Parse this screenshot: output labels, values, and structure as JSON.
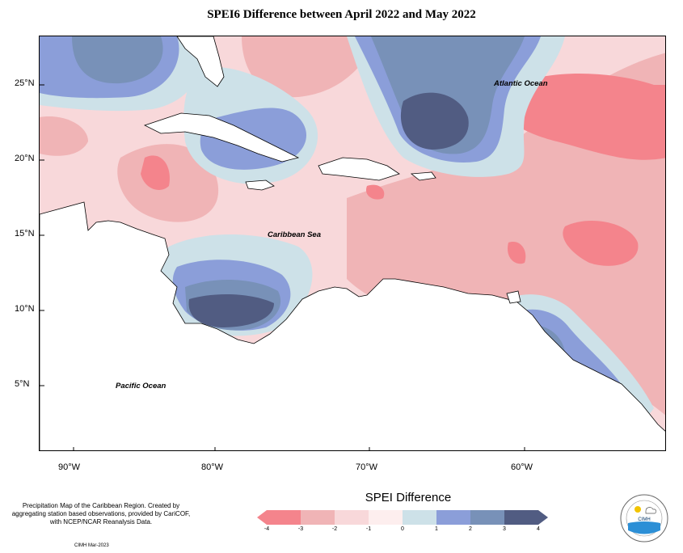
{
  "title": "SPEI6 Difference between April 2022 and May 2022",
  "map": {
    "region": "Caribbean",
    "lat_labels": [
      "25°N",
      "20°N",
      "15°N",
      "10°N",
      "5°N"
    ],
    "lon_labels": [
      "90°W",
      "80°W",
      "70°W",
      "60°W"
    ],
    "places": {
      "atlantic": "Atlantic Ocean",
      "caribbean": "Caribbean Sea",
      "pacific": "Pacific Ocean"
    }
  },
  "legend": {
    "title": "SPEI Difference",
    "ticks": [
      "-4",
      "-3",
      "-2",
      "-1",
      "0",
      "1",
      "2",
      "3",
      "4"
    ],
    "colors": [
      "#f4848c",
      "#f0b4b6",
      "#f8d8da",
      "#fdeeee",
      "#cde1e8",
      "#8b9ed9",
      "#7891b8",
      "#515c82"
    ]
  },
  "note": "Precipitation Map of the Caribbean Region. Created by aggregating station based observations, provided by CariCOF, with NCEP/NCAR Reanalysis Data.",
  "credit": "CIMH Mar-2023",
  "logo_text": "CIMH"
}
